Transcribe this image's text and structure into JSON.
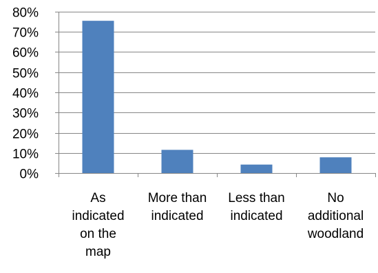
{
  "chart_data": {
    "type": "bar",
    "categories": [
      [
        "As",
        "indicated",
        "on the",
        "map"
      ],
      [
        "More than",
        "indicated"
      ],
      [
        "Less than",
        "indicated"
      ],
      [
        "No",
        "additional",
        "woodland"
      ]
    ],
    "values": [
      0.755,
      0.115,
      0.042,
      0.078
    ],
    "yticks": [
      "0%",
      "10%",
      "20%",
      "30%",
      "40%",
      "50%",
      "60%",
      "70%",
      "80%"
    ],
    "ylim": [
      0,
      0.8
    ],
    "grid": true,
    "legend": "none",
    "bar_color": "#4f81bd",
    "grid_color": "#868686",
    "axis_color": "#868686"
  }
}
